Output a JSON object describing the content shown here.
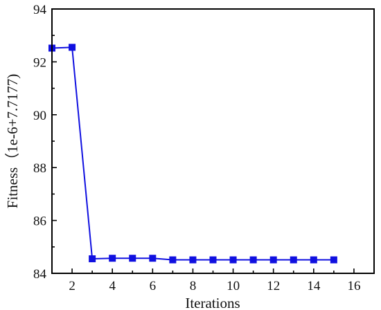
{
  "chart_data": {
    "type": "line",
    "xlabel": "Iterations",
    "ylabel": "Fitness（1e-6+7.7177)",
    "xlim": [
      1,
      17
    ],
    "ylim": [
      84,
      94
    ],
    "xticks": [
      2,
      4,
      6,
      8,
      10,
      12,
      14,
      16
    ],
    "yticks": [
      84,
      86,
      88,
      90,
      92,
      94
    ],
    "grid": false,
    "legend": "none",
    "series": [
      {
        "color": "#1010e0",
        "marker": "square",
        "x": [
          1,
          2,
          3,
          4,
          5,
          6,
          7,
          8,
          9,
          10,
          11,
          12,
          13,
          14,
          15
        ],
        "y": [
          92.52,
          92.55,
          84.55,
          84.57,
          84.57,
          84.57,
          84.51,
          84.51,
          84.51,
          84.51,
          84.51,
          84.51,
          84.51,
          84.51,
          84.51
        ]
      }
    ]
  }
}
